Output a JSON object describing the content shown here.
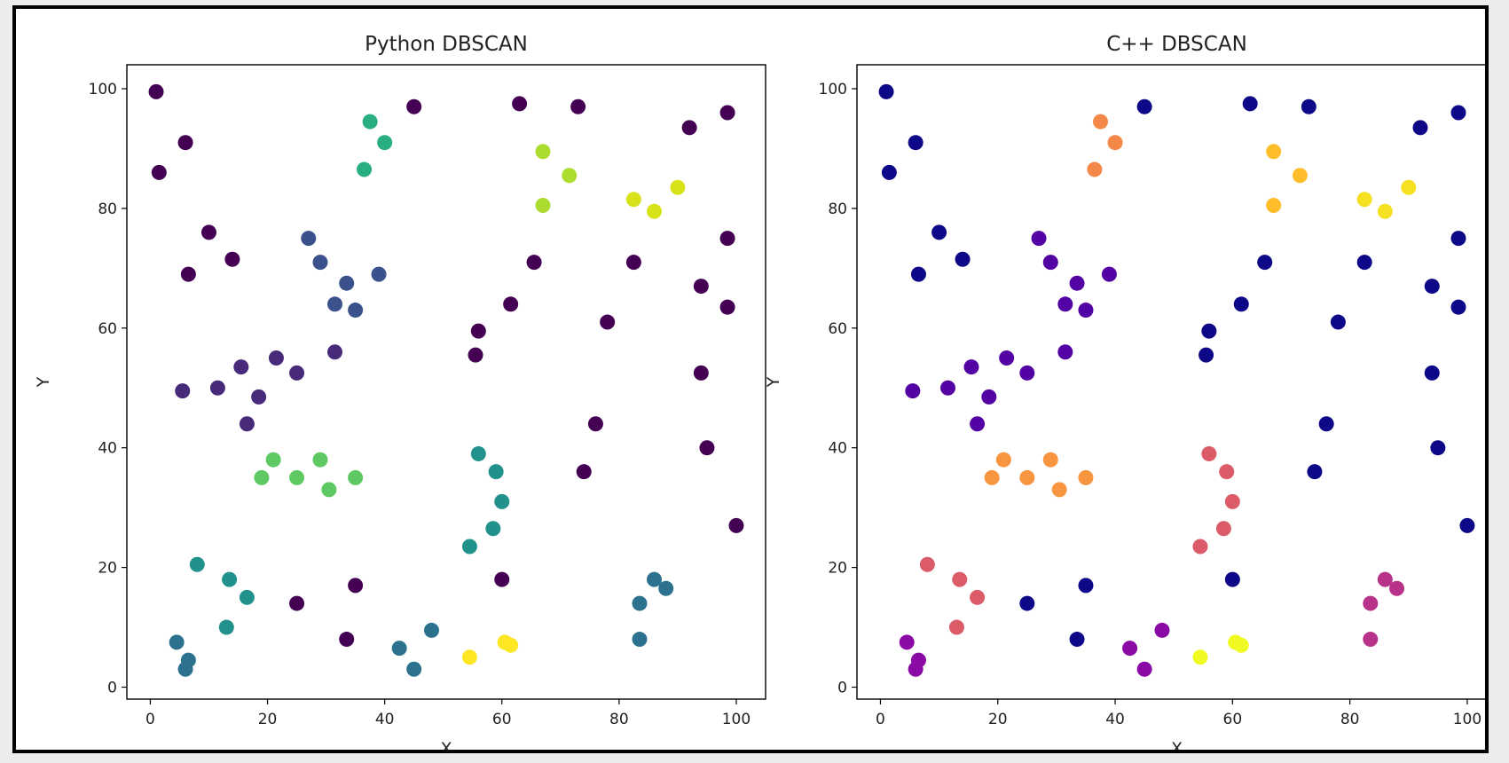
{
  "chart_data": [
    {
      "type": "scatter",
      "title": "Python DBSCAN",
      "xlabel": "X",
      "ylabel": "Y",
      "xlim": [
        -4,
        105
      ],
      "ylim": [
        -2,
        104
      ],
      "xticks": [
        0,
        20,
        40,
        60,
        80,
        100
      ],
      "yticks": [
        0,
        20,
        40,
        60,
        80,
        100
      ],
      "grid": false,
      "colormap": "viridis",
      "palette": {
        "noise": "#440154",
        "c1": "#472a7a",
        "c2": "#3b518b",
        "c3": "#2c728e",
        "c4": "#21918c",
        "c5": "#28ae80",
        "c6": "#5ec962",
        "c7": "#addc30",
        "c8": "#d8e219",
        "c9": "#fde725"
      },
      "points": [
        {
          "x": 1,
          "y": 99.5,
          "c": "noise"
        },
        {
          "x": 1.5,
          "y": 86,
          "c": "noise"
        },
        {
          "x": 6,
          "y": 91,
          "c": "noise"
        },
        {
          "x": 45,
          "y": 97,
          "c": "noise"
        },
        {
          "x": 63,
          "y": 97.5,
          "c": "noise"
        },
        {
          "x": 73,
          "y": 97,
          "c": "noise"
        },
        {
          "x": 92,
          "y": 93.5,
          "c": "noise"
        },
        {
          "x": 98.5,
          "y": 96,
          "c": "noise"
        },
        {
          "x": 10,
          "y": 76,
          "c": "noise"
        },
        {
          "x": 14,
          "y": 71.5,
          "c": "noise"
        },
        {
          "x": 6.5,
          "y": 69,
          "c": "noise"
        },
        {
          "x": 65.5,
          "y": 71,
          "c": "noise"
        },
        {
          "x": 82.5,
          "y": 71,
          "c": "noise"
        },
        {
          "x": 98.5,
          "y": 75,
          "c": "noise"
        },
        {
          "x": 61.5,
          "y": 64,
          "c": "noise"
        },
        {
          "x": 94,
          "y": 67,
          "c": "noise"
        },
        {
          "x": 98.5,
          "y": 63.5,
          "c": "noise"
        },
        {
          "x": 78,
          "y": 61,
          "c": "noise"
        },
        {
          "x": 56,
          "y": 59.5,
          "c": "noise"
        },
        {
          "x": 55.5,
          "y": 55.5,
          "c": "noise"
        },
        {
          "x": 94,
          "y": 52.5,
          "c": "noise"
        },
        {
          "x": 76,
          "y": 44,
          "c": "noise"
        },
        {
          "x": 95,
          "y": 40,
          "c": "noise"
        },
        {
          "x": 74,
          "y": 36,
          "c": "noise"
        },
        {
          "x": 100,
          "y": 27,
          "c": "noise"
        },
        {
          "x": 60,
          "y": 18,
          "c": "noise"
        },
        {
          "x": 35,
          "y": 17,
          "c": "noise"
        },
        {
          "x": 25,
          "y": 14,
          "c": "noise"
        },
        {
          "x": 33.5,
          "y": 8,
          "c": "noise"
        },
        {
          "x": 5.5,
          "y": 49.5,
          "c": "c1"
        },
        {
          "x": 11.5,
          "y": 50,
          "c": "c1"
        },
        {
          "x": 15.5,
          "y": 53.5,
          "c": "c1"
        },
        {
          "x": 18.5,
          "y": 48.5,
          "c": "c1"
        },
        {
          "x": 16.5,
          "y": 44,
          "c": "c1"
        },
        {
          "x": 21.5,
          "y": 55,
          "c": "c1"
        },
        {
          "x": 25,
          "y": 52.5,
          "c": "c1"
        },
        {
          "x": 31.5,
          "y": 56,
          "c": "c1"
        },
        {
          "x": 27,
          "y": 75,
          "c": "c2"
        },
        {
          "x": 29,
          "y": 71,
          "c": "c2"
        },
        {
          "x": 33.5,
          "y": 67.5,
          "c": "c2"
        },
        {
          "x": 39,
          "y": 69,
          "c": "c2"
        },
        {
          "x": 31.5,
          "y": 64,
          "c": "c2"
        },
        {
          "x": 35,
          "y": 63,
          "c": "c2"
        },
        {
          "x": 4.5,
          "y": 7.5,
          "c": "c3"
        },
        {
          "x": 6.5,
          "y": 4.5,
          "c": "c3"
        },
        {
          "x": 6,
          "y": 3,
          "c": "c3"
        },
        {
          "x": 42.5,
          "y": 6.5,
          "c": "c3"
        },
        {
          "x": 48,
          "y": 9.5,
          "c": "c3"
        },
        {
          "x": 45,
          "y": 3,
          "c": "c3"
        },
        {
          "x": 86,
          "y": 18,
          "c": "c3"
        },
        {
          "x": 83.5,
          "y": 14,
          "c": "c3"
        },
        {
          "x": 88,
          "y": 16.5,
          "c": "c3"
        },
        {
          "x": 83.5,
          "y": 8,
          "c": "c3"
        },
        {
          "x": 8,
          "y": 20.5,
          "c": "c4"
        },
        {
          "x": 13.5,
          "y": 18,
          "c": "c4"
        },
        {
          "x": 16.5,
          "y": 15,
          "c": "c4"
        },
        {
          "x": 13,
          "y": 10,
          "c": "c4"
        },
        {
          "x": 56,
          "y": 39,
          "c": "c4"
        },
        {
          "x": 59,
          "y": 36,
          "c": "c4"
        },
        {
          "x": 60,
          "y": 31,
          "c": "c4"
        },
        {
          "x": 58.5,
          "y": 26.5,
          "c": "c4"
        },
        {
          "x": 54.5,
          "y": 23.5,
          "c": "c4"
        },
        {
          "x": 37.5,
          "y": 94.5,
          "c": "c5"
        },
        {
          "x": 40,
          "y": 91,
          "c": "c5"
        },
        {
          "x": 36.5,
          "y": 86.5,
          "c": "c5"
        },
        {
          "x": 21,
          "y": 38,
          "c": "c6"
        },
        {
          "x": 19,
          "y": 35,
          "c": "c6"
        },
        {
          "x": 25,
          "y": 35,
          "c": "c6"
        },
        {
          "x": 29,
          "y": 38,
          "c": "c6"
        },
        {
          "x": 30.5,
          "y": 33,
          "c": "c6"
        },
        {
          "x": 35,
          "y": 35,
          "c": "c6"
        },
        {
          "x": 67,
          "y": 89.5,
          "c": "c7"
        },
        {
          "x": 71.5,
          "y": 85.5,
          "c": "c7"
        },
        {
          "x": 67,
          "y": 80.5,
          "c": "c7"
        },
        {
          "x": 82.5,
          "y": 81.5,
          "c": "c8"
        },
        {
          "x": 86,
          "y": 79.5,
          "c": "c8"
        },
        {
          "x": 90,
          "y": 83.5,
          "c": "c8"
        },
        {
          "x": 54.5,
          "y": 5,
          "c": "c9"
        },
        {
          "x": 60.5,
          "y": 7.5,
          "c": "c9"
        },
        {
          "x": 61.5,
          "y": 7,
          "c": "c9"
        }
      ]
    },
    {
      "type": "scatter",
      "title": "C++ DBSCAN",
      "xlabel": "X",
      "ylabel": "Y",
      "xlim": [
        -4,
        105
      ],
      "ylim": [
        -2,
        104
      ],
      "xticks": [
        0,
        20,
        40,
        60,
        80,
        100
      ],
      "yticks": [
        0,
        20,
        40,
        60,
        80,
        100
      ],
      "grid": false,
      "colormap": "plasma",
      "palette": {
        "noise": "#0d0887",
        "c1": "#5302a3",
        "c2": "#8b0aa5",
        "c3": "#b83289",
        "c4": "#db5c68",
        "c5": "#f48849",
        "c6": "#f89540",
        "c7": "#febd2a",
        "c8": "#f5e022",
        "c9": "#f0f921"
      },
      "points": [
        {
          "x": 1,
          "y": 99.5,
          "c": "noise"
        },
        {
          "x": 1.5,
          "y": 86,
          "c": "noise"
        },
        {
          "x": 6,
          "y": 91,
          "c": "noise"
        },
        {
          "x": 45,
          "y": 97,
          "c": "noise"
        },
        {
          "x": 63,
          "y": 97.5,
          "c": "noise"
        },
        {
          "x": 73,
          "y": 97,
          "c": "noise"
        },
        {
          "x": 92,
          "y": 93.5,
          "c": "noise"
        },
        {
          "x": 98.5,
          "y": 96,
          "c": "noise"
        },
        {
          "x": 10,
          "y": 76,
          "c": "noise"
        },
        {
          "x": 14,
          "y": 71.5,
          "c": "noise"
        },
        {
          "x": 6.5,
          "y": 69,
          "c": "noise"
        },
        {
          "x": 65.5,
          "y": 71,
          "c": "noise"
        },
        {
          "x": 82.5,
          "y": 71,
          "c": "noise"
        },
        {
          "x": 98.5,
          "y": 75,
          "c": "noise"
        },
        {
          "x": 61.5,
          "y": 64,
          "c": "noise"
        },
        {
          "x": 94,
          "y": 67,
          "c": "noise"
        },
        {
          "x": 98.5,
          "y": 63.5,
          "c": "noise"
        },
        {
          "x": 78,
          "y": 61,
          "c": "noise"
        },
        {
          "x": 56,
          "y": 59.5,
          "c": "noise"
        },
        {
          "x": 55.5,
          "y": 55.5,
          "c": "noise"
        },
        {
          "x": 94,
          "y": 52.5,
          "c": "noise"
        },
        {
          "x": 76,
          "y": 44,
          "c": "noise"
        },
        {
          "x": 95,
          "y": 40,
          "c": "noise"
        },
        {
          "x": 74,
          "y": 36,
          "c": "noise"
        },
        {
          "x": 100,
          "y": 27,
          "c": "noise"
        },
        {
          "x": 60,
          "y": 18,
          "c": "noise"
        },
        {
          "x": 35,
          "y": 17,
          "c": "noise"
        },
        {
          "x": 25,
          "y": 14,
          "c": "noise"
        },
        {
          "x": 33.5,
          "y": 8,
          "c": "noise"
        },
        {
          "x": 5.5,
          "y": 49.5,
          "c": "c1"
        },
        {
          "x": 11.5,
          "y": 50,
          "c": "c1"
        },
        {
          "x": 15.5,
          "y": 53.5,
          "c": "c1"
        },
        {
          "x": 18.5,
          "y": 48.5,
          "c": "c1"
        },
        {
          "x": 16.5,
          "y": 44,
          "c": "c1"
        },
        {
          "x": 21.5,
          "y": 55,
          "c": "c1"
        },
        {
          "x": 25,
          "y": 52.5,
          "c": "c1"
        },
        {
          "x": 31.5,
          "y": 56,
          "c": "c1"
        },
        {
          "x": 27,
          "y": 75,
          "c": "c1"
        },
        {
          "x": 29,
          "y": 71,
          "c": "c1"
        },
        {
          "x": 33.5,
          "y": 67.5,
          "c": "c1"
        },
        {
          "x": 39,
          "y": 69,
          "c": "c1"
        },
        {
          "x": 31.5,
          "y": 64,
          "c": "c1"
        },
        {
          "x": 35,
          "y": 63,
          "c": "c1"
        },
        {
          "x": 4.5,
          "y": 7.5,
          "c": "c2"
        },
        {
          "x": 6.5,
          "y": 4.5,
          "c": "c2"
        },
        {
          "x": 6,
          "y": 3,
          "c": "c2"
        },
        {
          "x": 42.5,
          "y": 6.5,
          "c": "c2"
        },
        {
          "x": 48,
          "y": 9.5,
          "c": "c2"
        },
        {
          "x": 45,
          "y": 3,
          "c": "c2"
        },
        {
          "x": 86,
          "y": 18,
          "c": "c3"
        },
        {
          "x": 83.5,
          "y": 14,
          "c": "c3"
        },
        {
          "x": 88,
          "y": 16.5,
          "c": "c3"
        },
        {
          "x": 83.5,
          "y": 8,
          "c": "c3"
        },
        {
          "x": 8,
          "y": 20.5,
          "c": "c4"
        },
        {
          "x": 13.5,
          "y": 18,
          "c": "c4"
        },
        {
          "x": 16.5,
          "y": 15,
          "c": "c4"
        },
        {
          "x": 13,
          "y": 10,
          "c": "c4"
        },
        {
          "x": 56,
          "y": 39,
          "c": "c4"
        },
        {
          "x": 59,
          "y": 36,
          "c": "c4"
        },
        {
          "x": 60,
          "y": 31,
          "c": "c4"
        },
        {
          "x": 58.5,
          "y": 26.5,
          "c": "c4"
        },
        {
          "x": 54.5,
          "y": 23.5,
          "c": "c4"
        },
        {
          "x": 37.5,
          "y": 94.5,
          "c": "c5"
        },
        {
          "x": 40,
          "y": 91,
          "c": "c5"
        },
        {
          "x": 36.5,
          "y": 86.5,
          "c": "c5"
        },
        {
          "x": 21,
          "y": 38,
          "c": "c6"
        },
        {
          "x": 19,
          "y": 35,
          "c": "c6"
        },
        {
          "x": 25,
          "y": 35,
          "c": "c6"
        },
        {
          "x": 29,
          "y": 38,
          "c": "c6"
        },
        {
          "x": 30.5,
          "y": 33,
          "c": "c6"
        },
        {
          "x": 35,
          "y": 35,
          "c": "c6"
        },
        {
          "x": 67,
          "y": 89.5,
          "c": "c7"
        },
        {
          "x": 71.5,
          "y": 85.5,
          "c": "c7"
        },
        {
          "x": 67,
          "y": 80.5,
          "c": "c7"
        },
        {
          "x": 82.5,
          "y": 81.5,
          "c": "c8"
        },
        {
          "x": 86,
          "y": 79.5,
          "c": "c8"
        },
        {
          "x": 90,
          "y": 83.5,
          "c": "c8"
        },
        {
          "x": 54.5,
          "y": 5,
          "c": "c9"
        },
        {
          "x": 60.5,
          "y": 7.5,
          "c": "c9"
        },
        {
          "x": 61.5,
          "y": 7,
          "c": "c9"
        }
      ]
    }
  ]
}
